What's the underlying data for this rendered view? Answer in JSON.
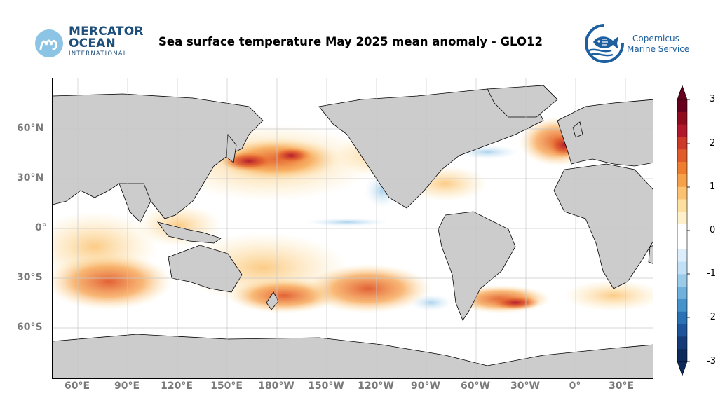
{
  "header": {
    "title": "Sea surface temperature May 2025 mean anomaly - GLO12",
    "mercator": {
      "line1": "MERCATOR",
      "line2": "OCEAN",
      "line3": "INTERNATIONAL"
    },
    "copernicus": {
      "line1": "Copernicus",
      "line2": "Marine Service"
    }
  },
  "map": {
    "lat_labels": [
      "60°N",
      "30°N",
      "0°",
      "30°S",
      "60°S"
    ],
    "lon_labels": [
      "60°E",
      "90°E",
      "120°E",
      "150°E",
      "180°W",
      "150°W",
      "120°W",
      "90°W",
      "60°W",
      "30°W",
      "0°",
      "30°E"
    ],
    "land_color": "#cccccc",
    "grid_color": "#c8c8c8"
  },
  "colorbar": {
    "ticks": [
      "3",
      "2",
      "1",
      "0",
      "-1",
      "-2",
      "-3"
    ],
    "colors": [
      "#67001f",
      "#8f0c1e",
      "#b2182b",
      "#cd3a2a",
      "#e05a2a",
      "#ef7d2f",
      "#f6a04a",
      "#fbc271",
      "#fde0a0",
      "#fff0cc",
      "#ffffff",
      "#ffffff",
      "#ddeefa",
      "#c1e0f5",
      "#9ccbea",
      "#6fb0dc",
      "#4593ca",
      "#2a72b4",
      "#1d549a",
      "#143b77",
      "#0c2a5c"
    ]
  }
}
